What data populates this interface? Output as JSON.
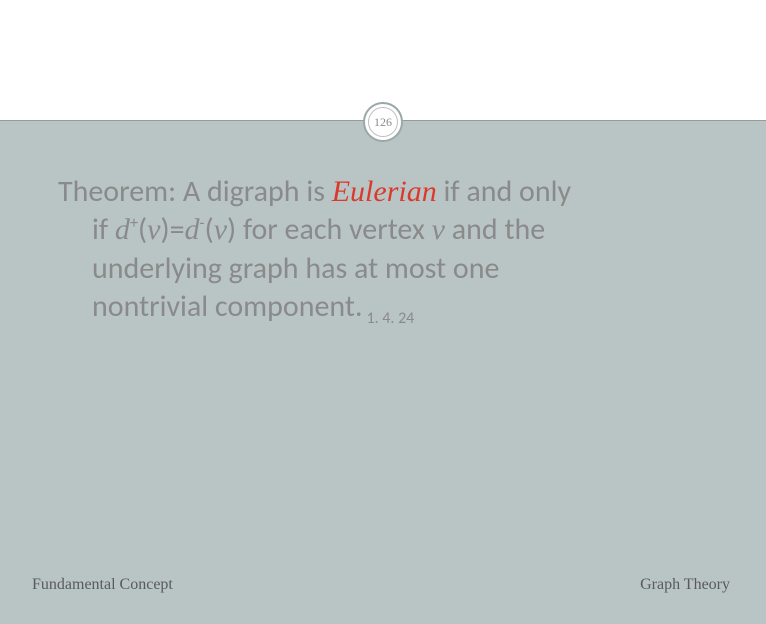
{
  "page": {
    "number": "126",
    "background_top": "#ffffff",
    "background_main": "#b9c5c5",
    "text_color": "#8a8a8a",
    "highlight_color": "#d93a2b",
    "footer_color": "#5a5a5a"
  },
  "theorem": {
    "lead": "Theorem:  A digraph is ",
    "eulerian": "Eulerian",
    "after_eulerian": " if and only",
    "line2_prefix": "if ",
    "d": "d",
    "sup_plus": "+",
    "sup_minus": "-",
    "open": "(",
    "close": ")",
    "v": "v",
    "eq": "=",
    "line2_suffix": " for each vertex ",
    "line2_end": " and the",
    "line3": "underlying graph has at most one",
    "line4": "nontrivial component.",
    "ref": "1. 4. 24"
  },
  "footer": {
    "left": "Fundamental Concept",
    "right": "Graph Theory"
  }
}
